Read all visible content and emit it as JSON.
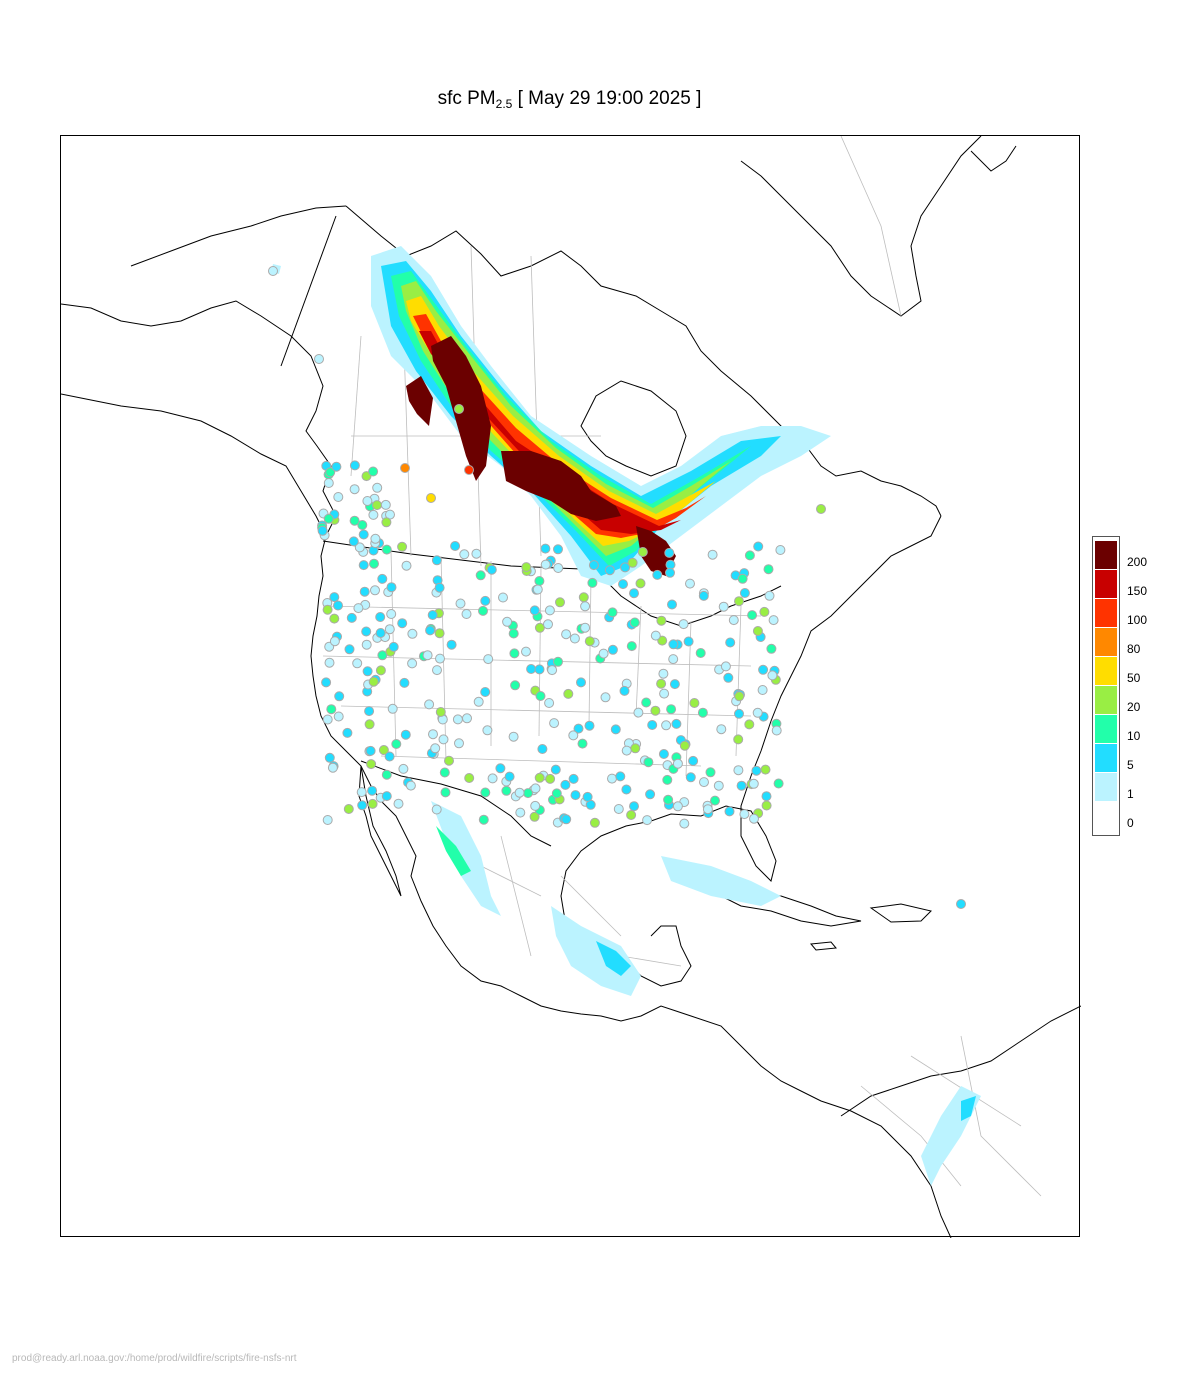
{
  "header": {
    "title_prefix": "sfc PM",
    "title_subscript": "2.5",
    "title_suffix": " [ May 29 19:00 2025 ]"
  },
  "legend": {
    "entries": [
      {
        "label": "200",
        "color": "#6b0000"
      },
      {
        "label": "150",
        "color": "#c80000"
      },
      {
        "label": "100",
        "color": "#ff3300"
      },
      {
        "label": "80",
        "color": "#ff8800"
      },
      {
        "label": "50",
        "color": "#ffdd00"
      },
      {
        "label": "20",
        "color": "#99ee44"
      },
      {
        "label": "10",
        "color": "#22ffaa"
      },
      {
        "label": "5",
        "color": "#22ddff"
      },
      {
        "label": "1",
        "color": "#bbf3ff"
      },
      {
        "label": "0",
        "color": "#ffffff"
      }
    ]
  },
  "footer": {
    "text": "prod@ready.arl.noaa.gov:/home/prod/wildfire/scripts/fire-nsfs-nrt"
  }
}
